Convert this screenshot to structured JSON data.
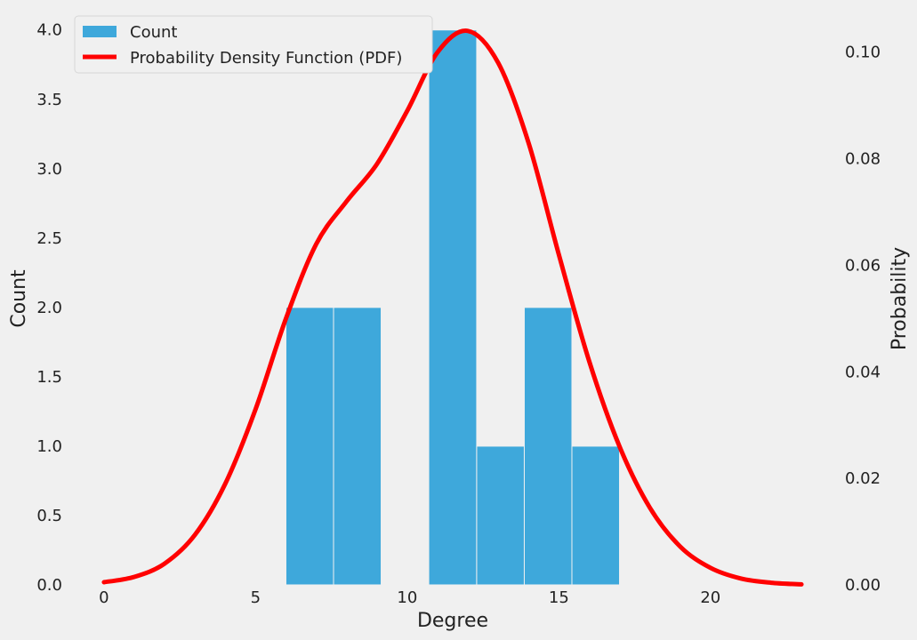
{
  "chart_data": {
    "type": "bar",
    "xlabel": "Degree",
    "ylabel": "Count",
    "y2label": "Probability",
    "xlim": [
      -1.2,
      24.2
    ],
    "ylim": [
      0,
      4.12
    ],
    "y2lim": [
      0,
      0.1073
    ],
    "x_ticks": [
      0,
      5,
      10,
      15,
      20
    ],
    "y_ticks": [
      0.0,
      0.5,
      1.0,
      1.5,
      2.0,
      2.5,
      3.0,
      3.5,
      4.0
    ],
    "y2_ticks": [
      0.0,
      0.02,
      0.04,
      0.06,
      0.08,
      0.1
    ],
    "grid": false,
    "legend_position": "top-left",
    "bins": [
      {
        "x0": 6.0,
        "x1": 7.57,
        "count": 2
      },
      {
        "x0": 7.57,
        "x1": 9.14,
        "count": 2
      },
      {
        "x0": 9.14,
        "x1": 10.71,
        "count": 0
      },
      {
        "x0": 10.71,
        "x1": 12.29,
        "count": 4
      },
      {
        "x0": 12.29,
        "x1": 13.86,
        "count": 1
      },
      {
        "x0": 13.86,
        "x1": 15.43,
        "count": 2
      },
      {
        "x0": 15.43,
        "x1": 17.0,
        "count": 1
      }
    ],
    "series": [
      {
        "name": "Count",
        "color": "#3ea8db"
      },
      {
        "name": "Probability Density Function (PDF)",
        "color": "#ff0000",
        "x": [
          0,
          1,
          2,
          3,
          4,
          5,
          6,
          7,
          8,
          9,
          10,
          11,
          12,
          13,
          14,
          15,
          16,
          17,
          18,
          19,
          20,
          21,
          22,
          23
        ],
        "y": [
          0.0005,
          0.0015,
          0.004,
          0.0094,
          0.019,
          0.033,
          0.05,
          0.064,
          0.072,
          0.079,
          0.089,
          0.1,
          0.104,
          0.098,
          0.083,
          0.062,
          0.042,
          0.026,
          0.0145,
          0.0072,
          0.0032,
          0.0012,
          0.0004,
          0.0001
        ]
      }
    ]
  }
}
